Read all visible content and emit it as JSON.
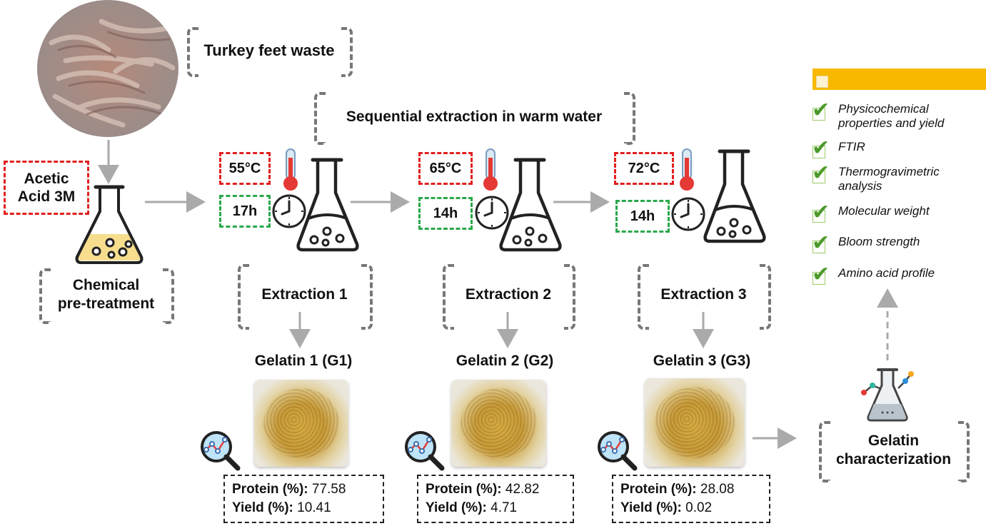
{
  "source": {
    "label": "Turkey feet waste"
  },
  "pretreatment": {
    "acid": "Acetic Acid 3M",
    "label_line1": "Chemical",
    "label_line2": "pre-treatment"
  },
  "sequential": {
    "label": "Sequential extraction in warm water"
  },
  "extractions": [
    {
      "temp": "55°C",
      "time": "17h",
      "label": "Extraction 1",
      "gelatin": "Gelatin 1 (G1)",
      "protein_label": "Protein (%):",
      "protein": "77.58",
      "yield_label": "Yield (%):",
      "yield": "10.41"
    },
    {
      "temp": "65°C",
      "time": "14h",
      "label": "Extraction 2",
      "gelatin": "Gelatin 2 (G2)",
      "protein_label": "Protein (%):",
      "protein": "42.82",
      "yield_label": "Yield (%):",
      "yield": "4.71"
    },
    {
      "temp": "72°C",
      "time": "14h",
      "label": "Extraction 3",
      "gelatin": "Gelatin 3 (G3)",
      "protein_label": "Protein (%):",
      "protein": "28.08",
      "yield_label": "Yield (%):",
      "yield": "0.02"
    }
  ],
  "characterization": {
    "label_line1": "Gelatin",
    "label_line2": "characterization",
    "items": [
      "Physicochemical properties and yield",
      "FTIR",
      "Thermogravimetric analysis",
      "Molecular weight",
      "Bloom strength",
      "Amino acid profile"
    ]
  },
  "colors": {
    "red": "#e02020",
    "green": "#2aa84a",
    "header_bar": "#f9b800",
    "arrow": "#aaaaaa",
    "check": "#4c9a2a"
  }
}
